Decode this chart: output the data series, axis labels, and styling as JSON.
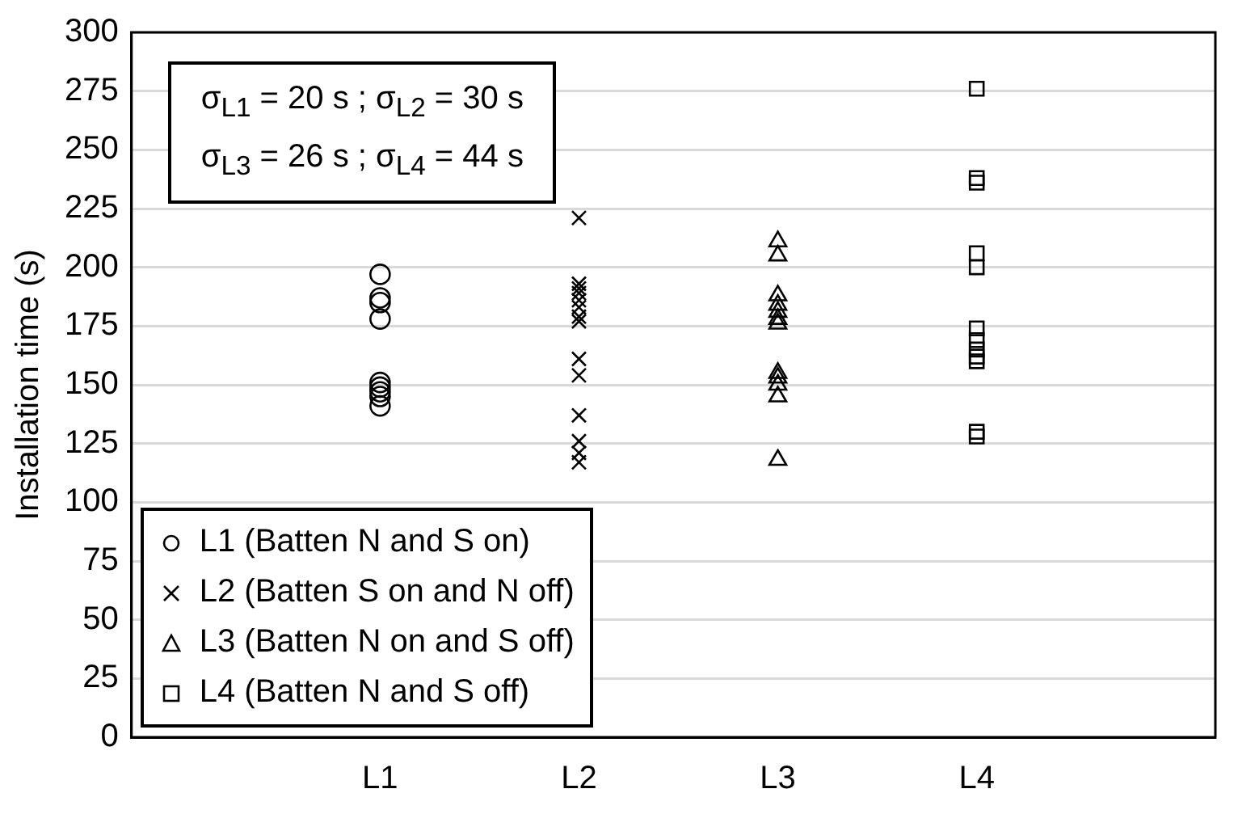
{
  "chart_data": {
    "type": "scatter",
    "ylabel": "Installation time (s)",
    "categories": [
      "L1",
      "L2",
      "L3",
      "L4"
    ],
    "series": [
      {
        "name": "L1 (Batten N and S on)",
        "color": "#000000",
        "marker": "circle",
        "x": [
          "L1",
          "L1",
          "L1",
          "L1",
          "L1",
          "L1",
          "L1",
          "L1",
          "L1"
        ],
        "values": [
          197,
          187,
          185,
          178,
          151,
          149,
          147,
          145,
          141
        ]
      },
      {
        "name": "L2 (Batten S on and N off)",
        "color": "#000000",
        "marker": "cross",
        "x": [
          "L2",
          "L2",
          "L2",
          "L2",
          "L2",
          "L2",
          "L2",
          "L2",
          "L2",
          "L2",
          "L2",
          "L2",
          "L2",
          "L2"
        ],
        "values": [
          221,
          193,
          191,
          189,
          186,
          183,
          179,
          177,
          161,
          154,
          137,
          126,
          121,
          117
        ]
      },
      {
        "name": "L3 (Batten N on and S off)",
        "color": "#000000",
        "marker": "triangle",
        "x": [
          "L3",
          "L3",
          "L3",
          "L3",
          "L3",
          "L3",
          "L3",
          "L3",
          "L3",
          "L3",
          "L3",
          "L3"
        ],
        "values": [
          211,
          205,
          188,
          184,
          181,
          178,
          176,
          155,
          153,
          150,
          145,
          118
        ]
      },
      {
        "name": "L4 (Batten N and S off)",
        "color": "#000000",
        "marker": "square",
        "x": [
          "L4",
          "L4",
          "L4",
          "L4",
          "L4",
          "L4",
          "L4",
          "L4",
          "L4",
          "L4",
          "L4",
          "L4"
        ],
        "values": [
          276,
          238,
          236,
          206,
          200,
          174,
          169,
          165,
          162,
          160,
          130,
          128
        ]
      }
    ],
    "ylim": [
      0,
      300
    ],
    "yticks": [
      0,
      25,
      50,
      75,
      100,
      125,
      150,
      175,
      200,
      225,
      250,
      275,
      300
    ],
    "grid": "y",
    "legend": "bottom left",
    "annotations": [
      "σ$_{L1}$ = 20 s ; σ$_{L2}$ = 30 s",
      "σ$_{L3}$ = 26 s ; σ$_{L4}$ = 44 s"
    ]
  }
}
